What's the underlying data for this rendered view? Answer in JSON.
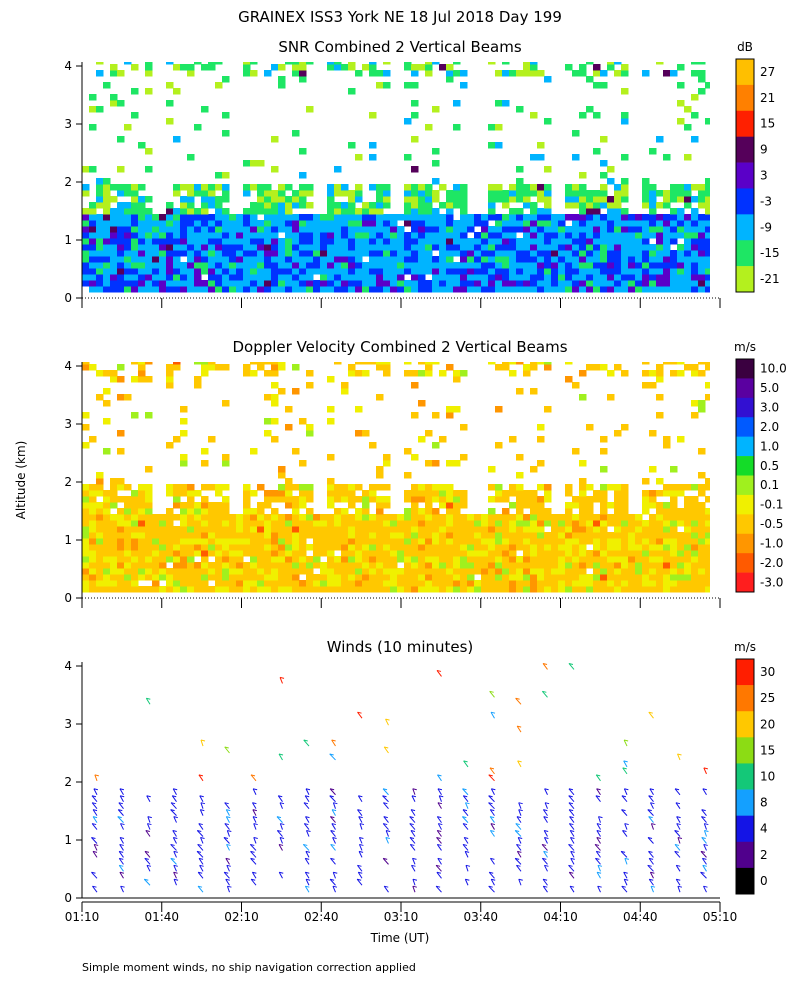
{
  "chart_data": {
    "type": "heatmap",
    "title": "GRAINEX ISS3 York NE  18 Jul 2018 Day 199",
    "ylabel": "Altitude (km)",
    "xlabel": "Time (UT)",
    "footnote": "Simple moment winds, no ship navigation correction applied",
    "x_ticks": [
      "01:10",
      "01:40",
      "02:10",
      "02:40",
      "03:10",
      "03:40",
      "04:10",
      "04:40",
      "05:10"
    ],
    "y_ticks": [
      "0",
      "1",
      "2",
      "3",
      "4"
    ],
    "ylim": [
      0,
      4
    ],
    "panels": [
      {
        "title": "SNR Combined 2 Vertical Beams",
        "unit": "dB",
        "type": "heatmap",
        "colorbar_labels": [
          "27",
          "21",
          "15",
          "9",
          "3",
          "-3",
          "-9",
          "-15",
          "-21"
        ],
        "colorbar_colors": [
          "#ffbf00",
          "#ff8000",
          "#ff2000",
          "#55005a",
          "#5a00c8",
          "#0032ff",
          "#00b4ff",
          "#1ee664",
          "#b4f01e"
        ]
      },
      {
        "title": "Doppler Velocity Combined 2 Vertical Beams",
        "unit": "m/s",
        "type": "heatmap",
        "colorbar_labels": [
          "10.0",
          "5.0",
          "3.0",
          "2.0",
          "1.0",
          "0.5",
          "0.1",
          "-0.1",
          "-0.5",
          "-1.0",
          "-2.0",
          "-3.0"
        ],
        "colorbar_colors": [
          "#3a0040",
          "#5a00a0",
          "#3210d2",
          "#005aff",
          "#00b4ff",
          "#14dc28",
          "#a0f01e",
          "#f0f000",
          "#ffc800",
          "#ff9600",
          "#ff5a00",
          "#ff1e1e"
        ]
      },
      {
        "title": "Winds (10 minutes)",
        "unit": "m/s",
        "type": "wind barbs",
        "colorbar_labels": [
          "30",
          "25",
          "20",
          "15",
          "10",
          "8",
          "4",
          "2",
          "0"
        ],
        "colorbar_colors": [
          "#ff1e00",
          "#ff7800",
          "#ffc800",
          "#8cdc14",
          "#14c878",
          "#14a0ff",
          "#1414e6",
          "#50008c",
          "#000000"
        ]
      }
    ]
  }
}
